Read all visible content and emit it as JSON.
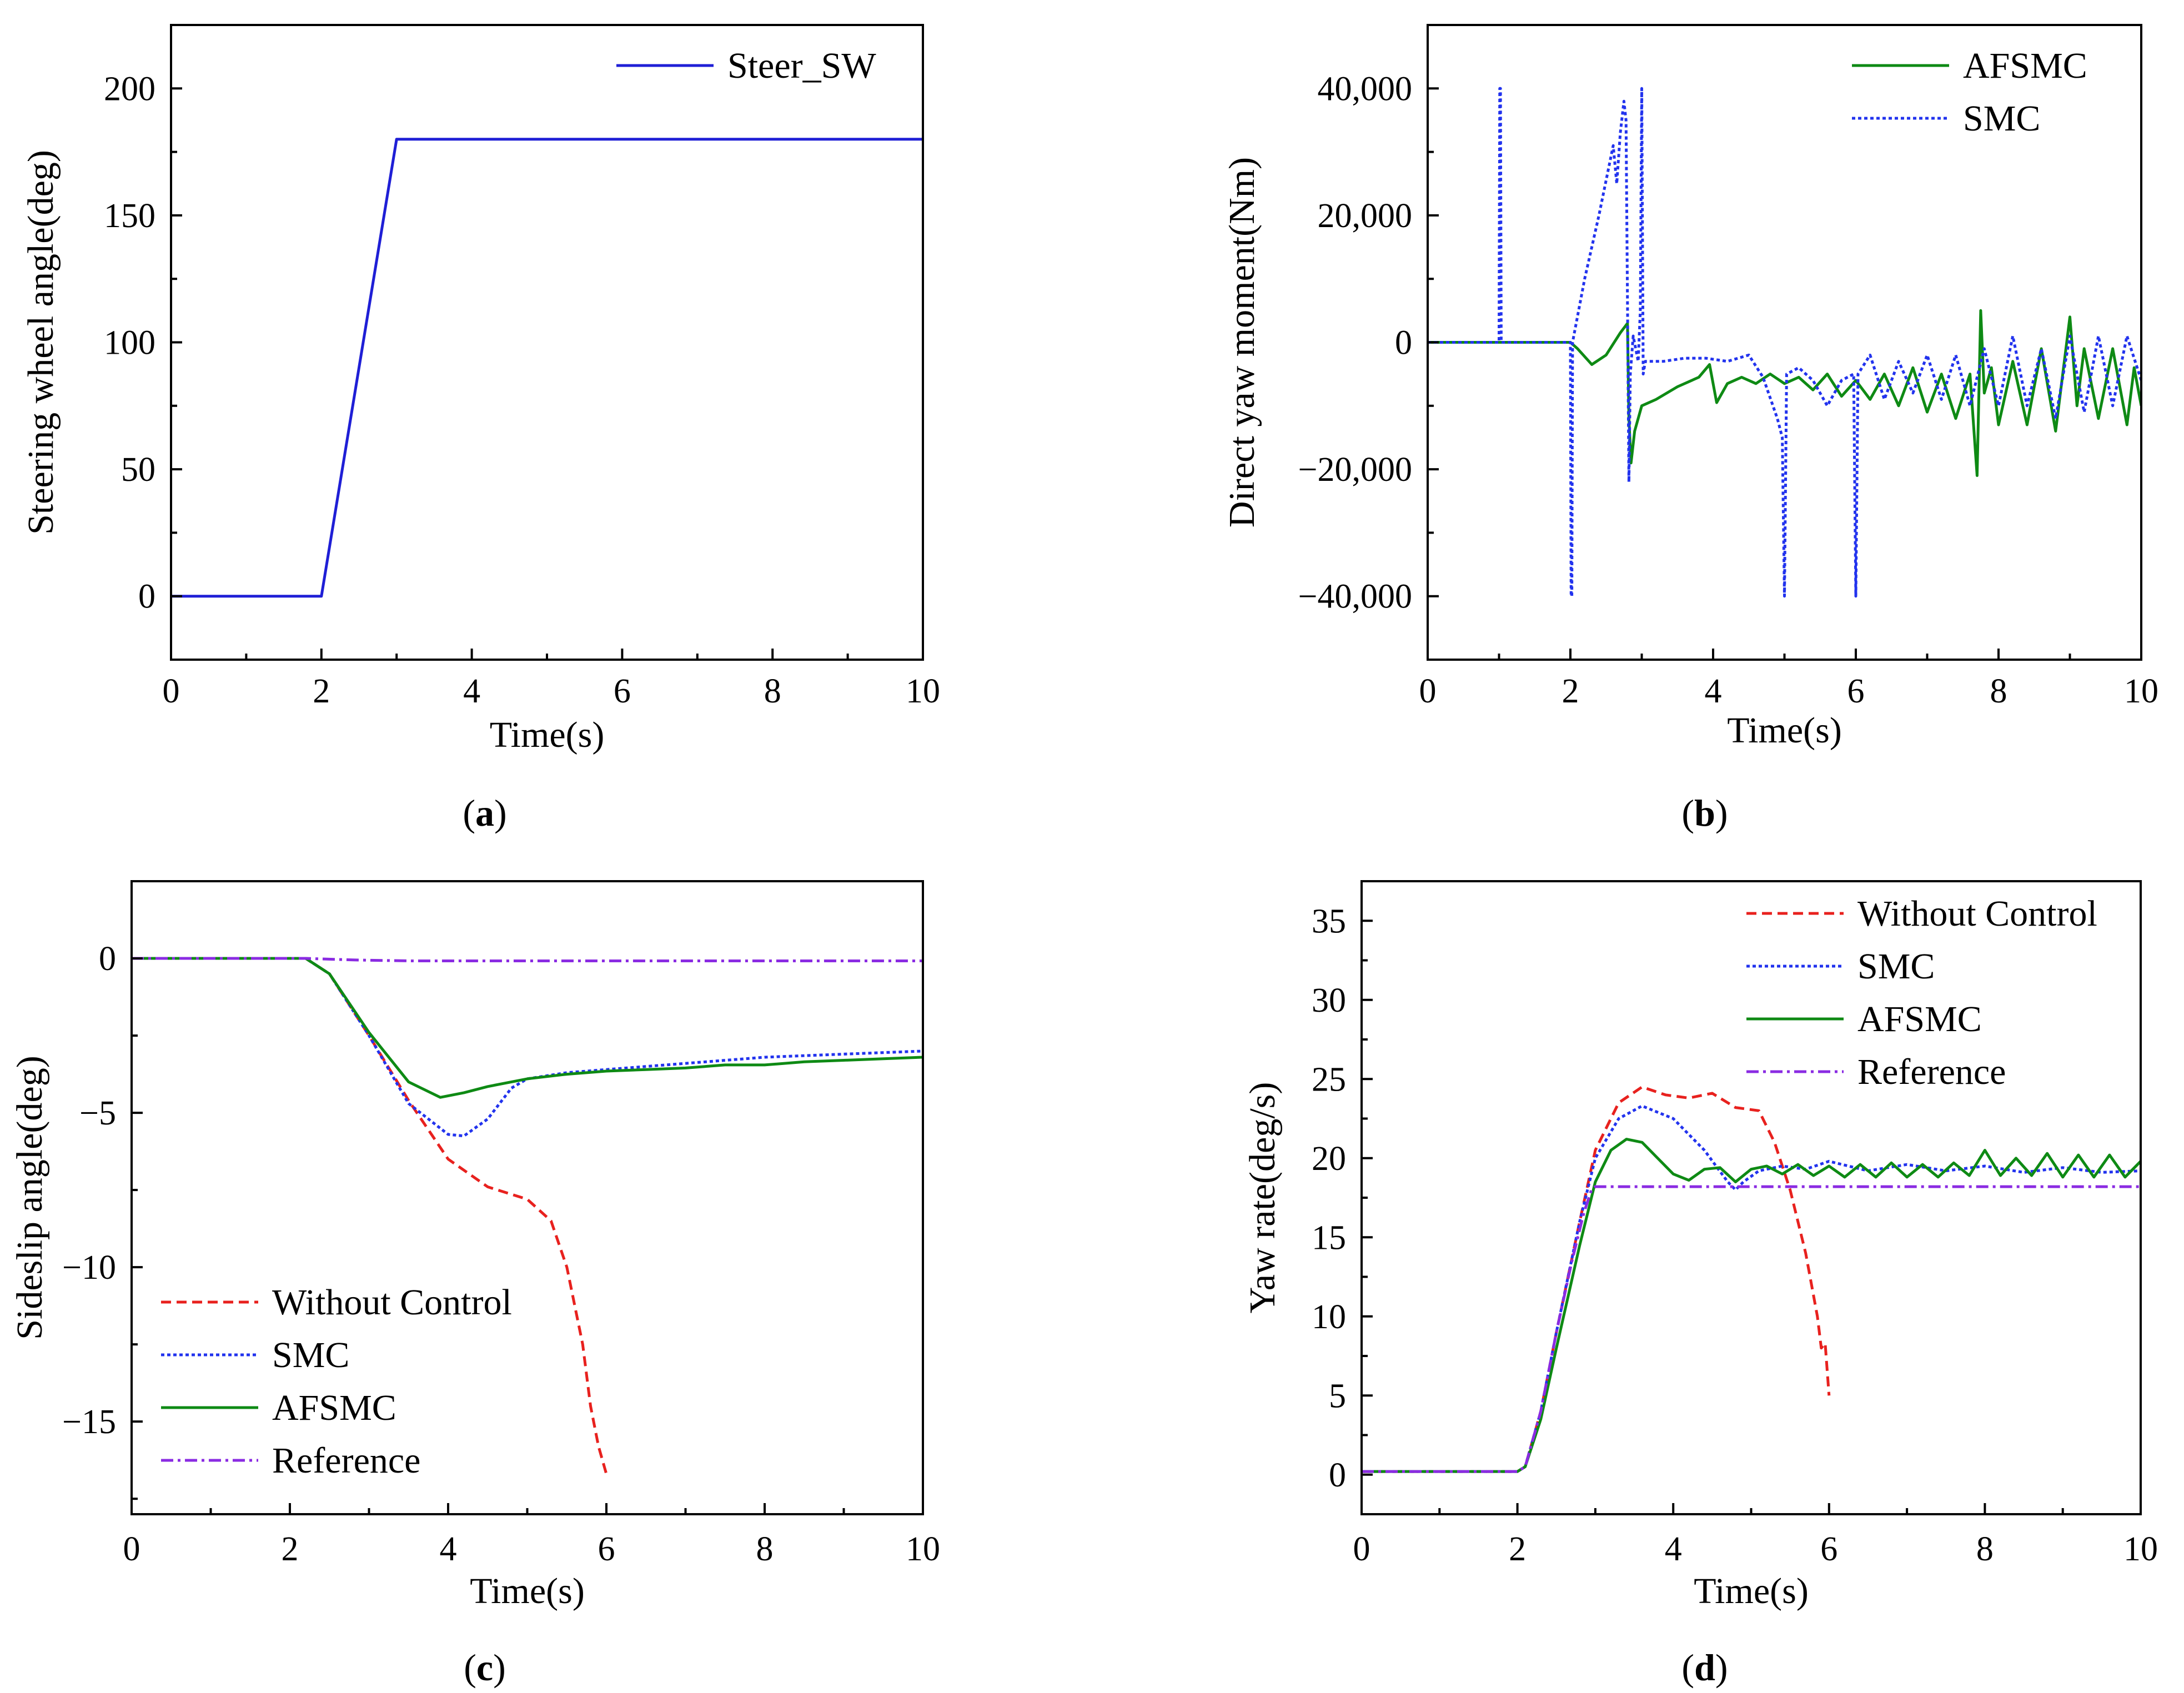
{
  "figure": {
    "captions": [
      "(a)",
      "(b)",
      "(c)",
      "(d)"
    ],
    "caption_letters": [
      "a",
      "b",
      "c",
      "d"
    ],
    "styles": {
      "Steer_SW": {
        "color": "#1f1fd6",
        "dash": "solid"
      },
      "Without Control": {
        "color": "#e8211e",
        "dash": "dashed"
      },
      "SMC": {
        "color": "#2233ee",
        "dash": "dotted"
      },
      "AFSMC": {
        "color": "#0e8a14",
        "dash": "solid"
      },
      "Reference": {
        "color": "#8a2be2",
        "dash": "dashdot"
      }
    }
  },
  "chart_data": [
    {
      "id": "a",
      "type": "line",
      "caption": "(a)",
      "title": "",
      "xlabel": "Time(s)",
      "ylabel": "Steering wheel angle(deg)",
      "xlim": [
        0,
        10
      ],
      "ylim": [
        -25,
        225
      ],
      "xticks": [
        0,
        2,
        4,
        6,
        8,
        10
      ],
      "yticks": [
        0,
        50,
        100,
        150,
        200
      ],
      "xtick_labels": [
        "0",
        "2",
        "4",
        "6",
        "8",
        "10"
      ],
      "ytick_labels": [
        "0",
        "50",
        "100",
        "150",
        "200"
      ],
      "legend_position": "top-right",
      "series": [
        {
          "name": "Steer_SW",
          "x": [
            0,
            2,
            3,
            10
          ],
          "y": [
            0,
            0,
            180,
            180
          ]
        }
      ]
    },
    {
      "id": "b",
      "type": "line",
      "caption": "(b)",
      "title": "",
      "xlabel": "Time(s)",
      "ylabel": "Direct yaw moment(Nm)",
      "xlim": [
        0,
        10
      ],
      "ylim": [
        -50000,
        50000
      ],
      "xticks": [
        0,
        2,
        4,
        6,
        8,
        10
      ],
      "yticks": [
        -40000,
        -20000,
        0,
        20000,
        40000
      ],
      "xtick_labels": [
        "0",
        "2",
        "4",
        "6",
        "8",
        "10"
      ],
      "ytick_labels": [
        "−40,000",
        "−20,000",
        "0",
        "20,000",
        "40,000"
      ],
      "legend_position": "top-right",
      "series": [
        {
          "name": "AFSMC",
          "x": [
            0,
            2.0,
            2.1,
            2.3,
            2.5,
            2.7,
            2.8,
            2.82,
            2.85,
            2.9,
            3.0,
            3.2,
            3.5,
            3.8,
            3.95,
            4.05,
            4.2,
            4.4,
            4.6,
            4.8,
            5.0,
            5.2,
            5.4,
            5.6,
            5.8,
            6.0,
            6.2,
            6.4,
            6.6,
            6.8,
            7.0,
            7.2,
            7.4,
            7.6,
            7.7,
            7.75,
            7.8,
            7.9,
            8.0,
            8.2,
            8.4,
            8.6,
            8.8,
            9.0,
            9.1,
            9.2,
            9.4,
            9.6,
            9.8,
            9.9,
            10.0
          ],
          "y": [
            0,
            0,
            -1000,
            -3500,
            -2000,
            1500,
            3000,
            -12000,
            -19000,
            -14000,
            -10000,
            -9000,
            -7000,
            -5500,
            -3500,
            -9500,
            -6500,
            -5500,
            -6500,
            -5000,
            -6500,
            -5500,
            -7500,
            -5000,
            -8500,
            -6000,
            -9000,
            -5000,
            -10000,
            -4000,
            -11000,
            -5000,
            -12000,
            -5000,
            -21000,
            5000,
            -8000,
            -4000,
            -13000,
            -3000,
            -13000,
            -1000,
            -14000,
            4000,
            -10000,
            -1000,
            -12000,
            -1000,
            -13000,
            -4000,
            -10000
          ]
        },
        {
          "name": "SMC",
          "x": [
            0,
            1.0,
            1.01,
            1.02,
            1.03,
            2.0,
            2.01,
            2.02,
            2.03,
            2.2,
            2.4,
            2.6,
            2.65,
            2.7,
            2.75,
            2.78,
            2.82,
            2.84,
            2.88,
            2.95,
            2.98,
            3.0,
            3.02,
            3.05,
            3.3,
            3.6,
            3.9,
            4.2,
            4.5,
            4.7,
            4.9,
            4.97,
            5.0,
            5.03,
            5.2,
            5.4,
            5.6,
            5.8,
            5.97,
            6.0,
            6.03,
            6.2,
            6.4,
            6.6,
            6.8,
            7.0,
            7.2,
            7.4,
            7.6,
            7.8,
            8.0,
            8.2,
            8.4,
            8.6,
            8.8,
            9.0,
            9.2,
            9.4,
            9.6,
            9.8,
            10.0
          ],
          "y": [
            0,
            0,
            40000,
            40000,
            0,
            0,
            -40000,
            -40000,
            0,
            10000,
            20000,
            31000,
            25000,
            33000,
            38000,
            35000,
            -22000,
            -5000,
            1000,
            -3000,
            5000,
            40000,
            -5000,
            -3000,
            -3000,
            -2500,
            -2500,
            -3000,
            -2000,
            -5500,
            -12000,
            -15000,
            -40000,
            -5000,
            -4000,
            -6000,
            -10000,
            -6000,
            -5000,
            -40000,
            -5000,
            -2000,
            -9000,
            -3000,
            -8000,
            -2000,
            -9000,
            -2000,
            -10000,
            -1000,
            -10000,
            1000,
            -10000,
            -1000,
            -12000,
            1000,
            -11000,
            1000,
            -10000,
            1000,
            -6000
          ]
        }
      ]
    },
    {
      "id": "c",
      "type": "line",
      "caption": "(c)",
      "title": "",
      "xlabel": "Time(s)",
      "ylabel": "Sideslip angle(deg)",
      "xlim": [
        0,
        10
      ],
      "ylim": [
        -18,
        2.5
      ],
      "xticks": [
        0,
        2,
        4,
        6,
        8,
        10
      ],
      "yticks": [
        -15,
        -10,
        -5,
        0
      ],
      "xtick_labels": [
        "0",
        "2",
        "4",
        "6",
        "8",
        "10"
      ],
      "ytick_labels": [
        "−15",
        "−10",
        "−5",
        "0"
      ],
      "legend_position": "bottom-left",
      "series": [
        {
          "name": "Without Control",
          "x": [
            0,
            2.2,
            2.5,
            3.0,
            3.5,
            4.0,
            4.5,
            5.0,
            5.3,
            5.5,
            5.7,
            5.8,
            5.9,
            6.0
          ],
          "y": [
            0,
            0,
            -0.5,
            -2.5,
            -4.6,
            -6.5,
            -7.4,
            -7.8,
            -8.5,
            -10.0,
            -12.5,
            -14.5,
            -15.8,
            -16.7
          ]
        },
        {
          "name": "SMC",
          "x": [
            0,
            2.2,
            2.5,
            3.0,
            3.5,
            4.0,
            4.2,
            4.5,
            4.8,
            5.0,
            5.5,
            6.0,
            7.0,
            8.0,
            9.0,
            10.0
          ],
          "y": [
            0,
            0,
            -0.5,
            -2.5,
            -4.7,
            -5.7,
            -5.75,
            -5.2,
            -4.2,
            -3.9,
            -3.7,
            -3.6,
            -3.4,
            -3.2,
            -3.1,
            -3.0
          ]
        },
        {
          "name": "AFSMC",
          "x": [
            0,
            2.2,
            2.5,
            3.0,
            3.5,
            3.9,
            4.2,
            4.5,
            5.0,
            5.5,
            6.0,
            6.5,
            7.0,
            7.5,
            8.0,
            8.5,
            9.0,
            9.5,
            10.0
          ],
          "y": [
            0,
            0,
            -0.5,
            -2.4,
            -4.0,
            -4.5,
            -4.35,
            -4.15,
            -3.9,
            -3.75,
            -3.65,
            -3.6,
            -3.55,
            -3.45,
            -3.45,
            -3.35,
            -3.3,
            -3.25,
            -3.2
          ]
        },
        {
          "name": "Reference",
          "x": [
            0,
            2.2,
            2.8,
            3.5,
            10.0
          ],
          "y": [
            0,
            0,
            -0.05,
            -0.08,
            -0.08
          ]
        }
      ]
    },
    {
      "id": "d",
      "type": "line",
      "caption": "(d)",
      "title": "",
      "xlabel": "Time(s)",
      "ylabel": "Yaw rate(deg/s)",
      "xlim": [
        0,
        10
      ],
      "ylim": [
        -2.5,
        37.5
      ],
      "xticks": [
        0,
        2,
        4,
        6,
        8,
        10
      ],
      "yticks": [
        0,
        5,
        10,
        15,
        20,
        25,
        30,
        35
      ],
      "xtick_labels": [
        "0",
        "2",
        "4",
        "6",
        "8",
        "10"
      ],
      "ytick_labels": [
        "0",
        "5",
        "10",
        "15",
        "20",
        "25",
        "30",
        "35"
      ],
      "legend_position": "top-right",
      "series": [
        {
          "name": "Without Control",
          "x": [
            0,
            2.0,
            2.1,
            2.3,
            2.5,
            2.8,
            3.0,
            3.3,
            3.6,
            3.9,
            4.2,
            4.5,
            4.8,
            5.1,
            5.3,
            5.5,
            5.7,
            5.85,
            5.9,
            5.95,
            6.0
          ],
          "y": [
            0.2,
            0.2,
            0.5,
            4.0,
            9.0,
            16.0,
            20.5,
            23.5,
            24.5,
            24.0,
            23.8,
            24.1,
            23.2,
            23.0,
            21.0,
            18.0,
            14.0,
            10.0,
            8.0,
            8.3,
            5.0
          ]
        },
        {
          "name": "SMC",
          "x": [
            0,
            2.0,
            2.1,
            2.3,
            2.5,
            2.8,
            3.0,
            3.3,
            3.6,
            4.0,
            4.4,
            4.7,
            4.8,
            4.9,
            5.1,
            5.4,
            5.7,
            6.0,
            6.5,
            7.0,
            7.5,
            8.0,
            8.5,
            9.0,
            9.5,
            10.0
          ],
          "y": [
            0.2,
            0.2,
            0.5,
            4.0,
            9.0,
            16.0,
            20.0,
            22.5,
            23.3,
            22.5,
            20.5,
            18.5,
            18.0,
            18.5,
            19.2,
            19.5,
            19.3,
            19.8,
            19.2,
            19.6,
            19.2,
            19.5,
            19.1,
            19.4,
            19.1,
            19.2
          ]
        },
        {
          "name": "AFSMC",
          "x": [
            0,
            2.0,
            2.1,
            2.3,
            2.5,
            2.8,
            3.0,
            3.2,
            3.4,
            3.6,
            3.8,
            4.0,
            4.2,
            4.4,
            4.6,
            4.8,
            5.0,
            5.2,
            5.4,
            5.6,
            5.8,
            6.0,
            6.2,
            6.4,
            6.6,
            6.8,
            7.0,
            7.2,
            7.4,
            7.6,
            7.8,
            8.0,
            8.2,
            8.4,
            8.6,
            8.8,
            9.0,
            9.2,
            9.4,
            9.6,
            9.8,
            10.0
          ],
          "y": [
            0.2,
            0.2,
            0.5,
            3.5,
            8.0,
            14.5,
            18.5,
            20.5,
            21.2,
            21.0,
            20.0,
            19.0,
            18.6,
            19.3,
            19.4,
            18.5,
            19.3,
            19.5,
            19.0,
            19.6,
            18.9,
            19.5,
            18.8,
            19.6,
            18.8,
            19.7,
            18.8,
            19.6,
            18.8,
            19.7,
            18.9,
            20.5,
            18.9,
            20.0,
            18.9,
            20.3,
            18.8,
            20.2,
            18.8,
            20.2,
            18.8,
            19.8
          ]
        },
        {
          "name": "Reference",
          "x": [
            0,
            2.0,
            2.1,
            2.3,
            2.5,
            2.7,
            2.85,
            2.95,
            3.0,
            10.0
          ],
          "y": [
            0.2,
            0.2,
            0.5,
            4.0,
            9.0,
            13.5,
            16.5,
            18.0,
            18.2,
            18.2
          ]
        }
      ]
    }
  ]
}
